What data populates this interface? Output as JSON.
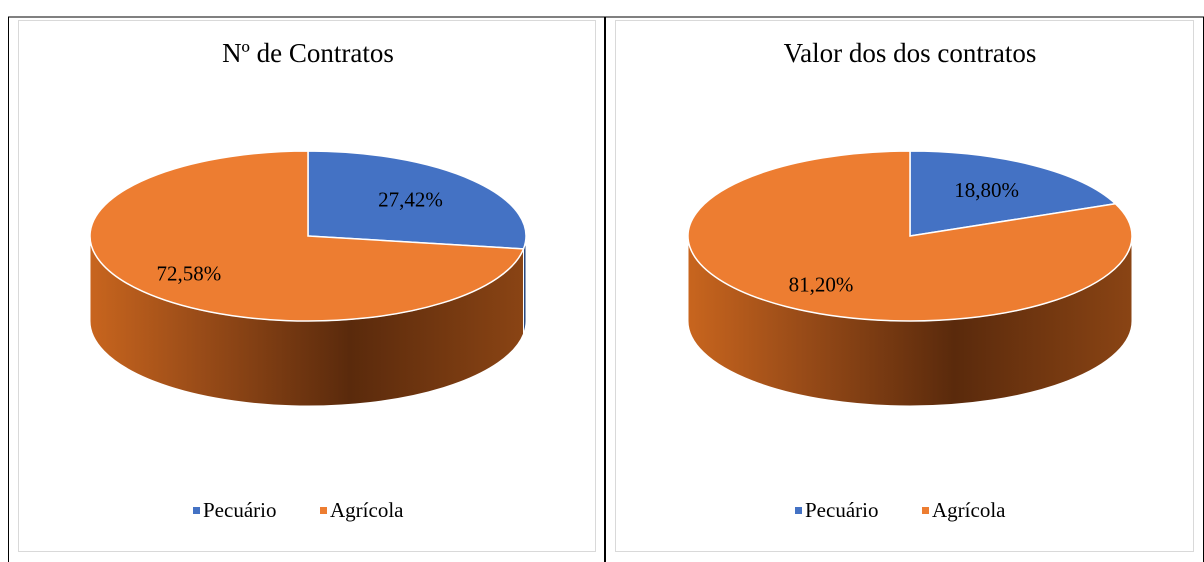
{
  "chart_data": [
    {
      "type": "pie",
      "title": "Nº de Contratos",
      "categories": [
        "Pecuário",
        "Agrícola"
      ],
      "values": [
        27.42,
        72.58
      ],
      "value_labels": [
        "27,42%",
        "72,58%"
      ],
      "colors": [
        "#4472c4",
        "#ed7d31"
      ],
      "legend": "bottom"
    },
    {
      "type": "pie",
      "title": "Valor dos dos contratos",
      "categories": [
        "Pecuário",
        "Agrícola"
      ],
      "values": [
        18.8,
        81.2
      ],
      "value_labels": [
        "18,80%",
        "81,20%"
      ],
      "colors": [
        "#4472c4",
        "#ed7d31"
      ],
      "legend": "bottom"
    }
  ]
}
